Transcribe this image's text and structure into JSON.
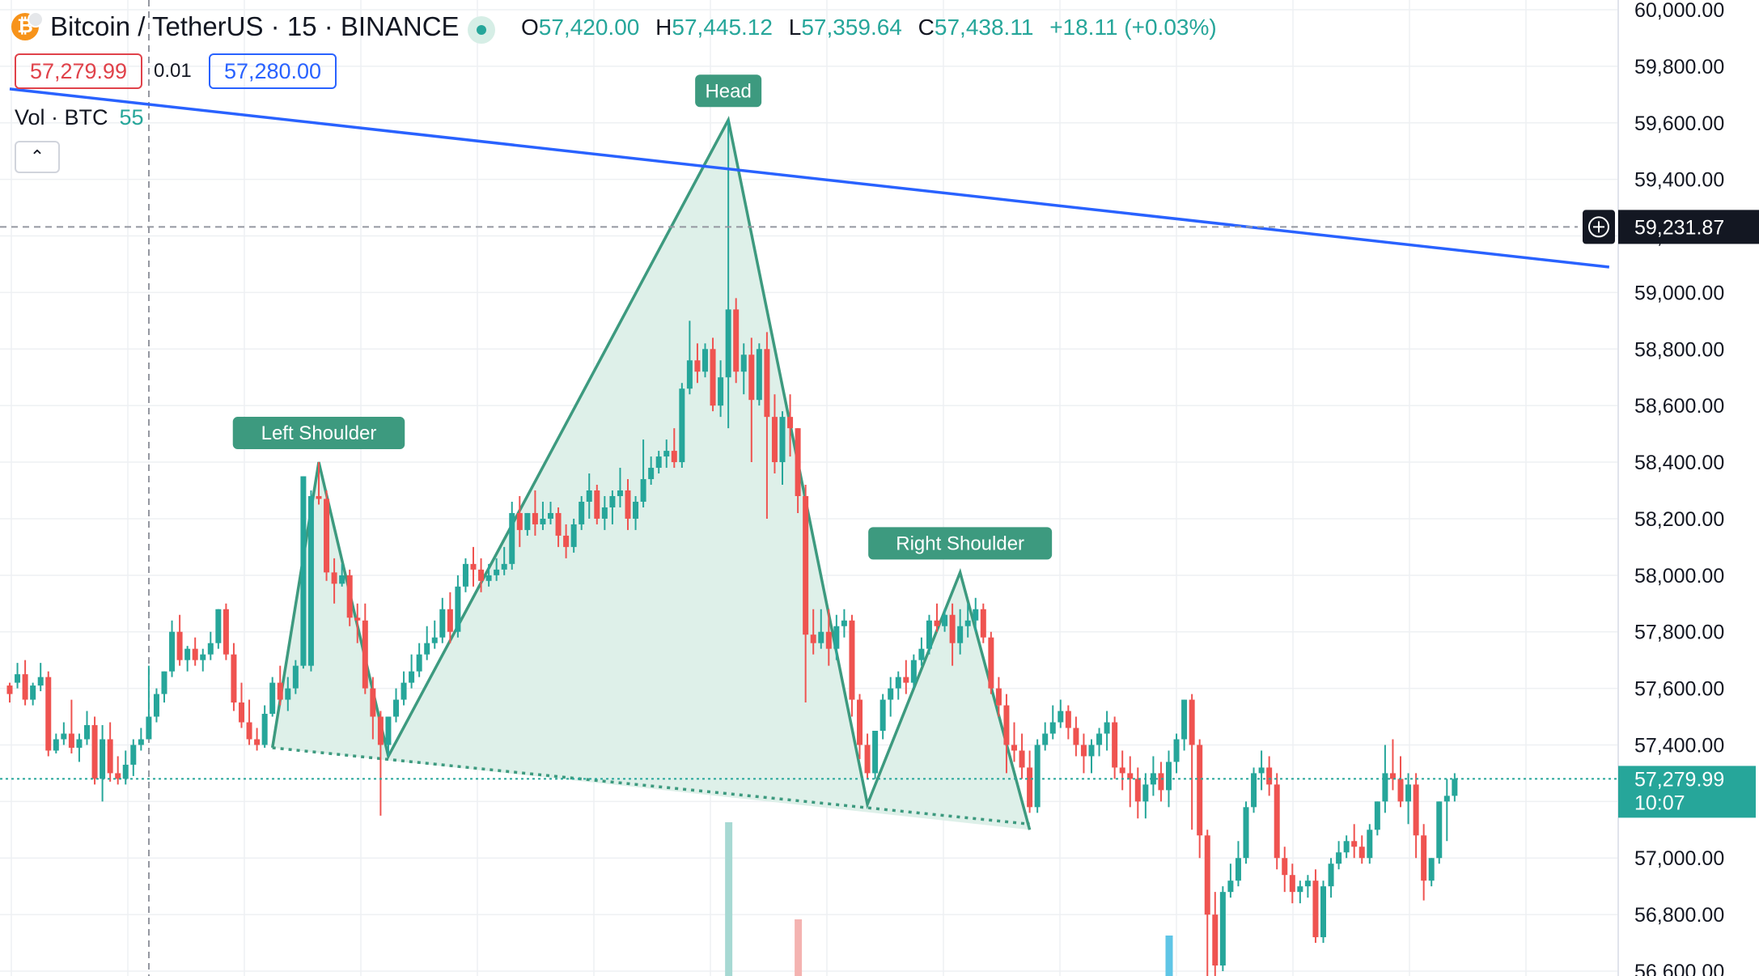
{
  "header": {
    "symbol_title": "Bitcoin / TetherUS · 15 · BINANCE",
    "coin_icon": "bitcoin-icon",
    "ohlc": {
      "o_label": "O",
      "o_value": "57,420.00",
      "h_label": "H",
      "h_value": "57,445.12",
      "l_label": "L",
      "l_value": "57,359.64",
      "c_label": "C",
      "c_value": "57,438.11",
      "change": "+18.11 (+0.03%)"
    },
    "sell_price": "57,279.99",
    "spread": "0.01",
    "buy_price": "57,280.00",
    "volume_label": "Vol · BTC",
    "volume_value": "55",
    "collapse_icon": "chevron-up-icon"
  },
  "chart_data": {
    "type": "candlestick",
    "ylim": [
      56600,
      60000
    ],
    "y_ticks": [
      "60,000.00",
      "59,800.00",
      "59,600.00",
      "59,400.00",
      "59,200.00",
      "59,000.00",
      "58,800.00",
      "58,600.00",
      "58,400.00",
      "58,200.00",
      "58,000.00",
      "57,800.00",
      "57,600.00",
      "57,400.00",
      "57,200.00",
      "57,000.00",
      "56,800.00",
      "56,600.00"
    ],
    "crosshair_price": "59,231.87",
    "last_price": "57,279.99",
    "countdown": "10:07",
    "pattern": {
      "labels": [
        "Left Shoulder",
        "Head",
        "Right Shoulder"
      ],
      "points": [
        {
          "bar": 34,
          "price": 57390
        },
        {
          "bar": 40,
          "price": 58400
        },
        {
          "bar": 49,
          "price": 57360
        },
        {
          "bar": 93,
          "price": 59610
        },
        {
          "bar": 111,
          "price": 57190
        },
        {
          "bar": 123,
          "price": 58010
        },
        {
          "bar": 132,
          "price": 57100
        }
      ],
      "neckline": [
        {
          "bar": 34,
          "price": 57390
        },
        {
          "bar": 132,
          "price": 57120
        }
      ]
    },
    "trendline": [
      {
        "bar": 0,
        "price": 59720
      },
      {
        "bar": 207,
        "price": 59090
      }
    ],
    "colors": {
      "up": "#26a69a",
      "down": "#ef5350",
      "trend": "#2962ff",
      "pattern": "#3d9a7f",
      "pattern_fill": "#dcefe8",
      "grid": "#eef0f3"
    },
    "candles": [
      [
        57610,
        57620,
        57580,
        57550
      ],
      [
        57620,
        57690,
        57650,
        57600
      ],
      [
        57650,
        57700,
        57560,
        57540
      ],
      [
        57560,
        57620,
        57610,
        57540
      ],
      [
        57610,
        57690,
        57640,
        57590
      ],
      [
        57640,
        57660,
        57380,
        57360
      ],
      [
        57380,
        57440,
        57420,
        57370
      ],
      [
        57420,
        57480,
        57440,
        57400
      ],
      [
        57440,
        57560,
        57390,
        57370
      ],
      [
        57390,
        57440,
        57420,
        57340
      ],
      [
        57420,
        57520,
        57470,
        57400
      ],
      [
        57470,
        57500,
        57280,
        57260
      ],
      [
        57280,
        57470,
        57420,
        57200
      ],
      [
        57420,
        57480,
        57300,
        57270
      ],
      [
        57300,
        57360,
        57280,
        57260
      ],
      [
        57280,
        57380,
        57330,
        57260
      ],
      [
        57330,
        57420,
        57400,
        57290
      ],
      [
        57400,
        57460,
        57420,
        57380
      ],
      [
        57420,
        57680,
        57500,
        57420
      ],
      [
        57500,
        57600,
        57580,
        57480
      ],
      [
        57580,
        57650,
        57660,
        57550
      ],
      [
        57660,
        57840,
        57800,
        57640
      ],
      [
        57800,
        57860,
        57700,
        57680
      ],
      [
        57700,
        57750,
        57740,
        57660
      ],
      [
        57740,
        57780,
        57700,
        57680
      ],
      [
        57700,
        57740,
        57720,
        57660
      ],
      [
        57720,
        57800,
        57760,
        57700
      ],
      [
        57760,
        57880,
        57880,
        57740
      ],
      [
        57880,
        57900,
        57720,
        57700
      ],
      [
        57720,
        57760,
        57550,
        57520
      ],
      [
        57550,
        57620,
        57480,
        57460
      ],
      [
        57480,
        57560,
        57420,
        57400
      ],
      [
        57420,
        57460,
        57400,
        57380
      ],
      [
        57400,
        57540,
        57510,
        57390
      ],
      [
        57510,
        57640,
        57620,
        57500
      ],
      [
        57620,
        57680,
        57560,
        57540
      ],
      [
        57560,
        57640,
        57600,
        57520
      ],
      [
        57600,
        57700,
        57680,
        57580
      ],
      [
        57680,
        58200,
        58350,
        57670
      ],
      [
        57680,
        58300,
        58280,
        57660
      ],
      [
        58280,
        58400,
        58270,
        58250
      ],
      [
        58270,
        58300,
        58010,
        57980
      ],
      [
        58010,
        58060,
        57970,
        57900
      ],
      [
        57970,
        58040,
        58000,
        57960
      ],
      [
        58000,
        58020,
        57850,
        57820
      ],
      [
        57850,
        57900,
        57840,
        57760
      ],
      [
        57840,
        57900,
        57600,
        57580
      ],
      [
        57600,
        57640,
        57500,
        57420
      ],
      [
        57500,
        57520,
        57400,
        57150
      ],
      [
        57400,
        57440,
        57500,
        57360
      ],
      [
        57500,
        57600,
        57560,
        57480
      ],
      [
        57560,
        57660,
        57620,
        57540
      ],
      [
        57620,
        57720,
        57660,
        57600
      ],
      [
        57660,
        57760,
        57720,
        57640
      ],
      [
        57720,
        57820,
        57760,
        57700
      ],
      [
        57760,
        57840,
        57780,
        57740
      ],
      [
        57780,
        57920,
        57880,
        57760
      ],
      [
        57880,
        57940,
        57800,
        57760
      ],
      [
        57800,
        58000,
        57960,
        57780
      ],
      [
        57960,
        58060,
        58040,
        57940
      ],
      [
        58040,
        58100,
        58020,
        57960
      ],
      [
        58020,
        58060,
        57980,
        57940
      ],
      [
        57980,
        58040,
        58000,
        57960
      ],
      [
        58000,
        58060,
        58020,
        57980
      ],
      [
        58020,
        58100,
        58040,
        58000
      ],
      [
        58040,
        58260,
        58220,
        58020
      ],
      [
        58220,
        58280,
        58160,
        58100
      ],
      [
        58160,
        58220,
        58220,
        58140
      ],
      [
        58220,
        58300,
        58180,
        58140
      ],
      [
        58180,
        58260,
        58200,
        58160
      ],
      [
        58200,
        58260,
        58220,
        58180
      ],
      [
        58220,
        58240,
        58140,
        58100
      ],
      [
        58140,
        58180,
        58100,
        58060
      ],
      [
        58100,
        58200,
        58180,
        58080
      ],
      [
        58180,
        58280,
        58260,
        58160
      ],
      [
        58260,
        58360,
        58300,
        58200
      ],
      [
        58300,
        58320,
        58200,
        58180
      ],
      [
        58200,
        58280,
        58240,
        58160
      ],
      [
        58240,
        58300,
        58280,
        58180
      ],
      [
        58280,
        58380,
        58300,
        58240
      ],
      [
        58300,
        58340,
        58200,
        58160
      ],
      [
        58200,
        58280,
        58260,
        58160
      ],
      [
        58260,
        58480,
        58340,
        58240
      ],
      [
        58340,
        58420,
        58380,
        58320
      ],
      [
        58380,
        58440,
        58420,
        58360
      ],
      [
        58420,
        58480,
        58440,
        58380
      ],
      [
        58440,
        58520,
        58400,
        58380
      ],
      [
        58400,
        58680,
        58660,
        58380
      ],
      [
        58660,
        58900,
        58760,
        58640
      ],
      [
        58760,
        58820,
        58720,
        58680
      ],
      [
        58720,
        58820,
        58800,
        58700
      ],
      [
        58800,
        58840,
        58600,
        58580
      ],
      [
        58600,
        58760,
        58700,
        58560
      ],
      [
        58700,
        59610,
        58940,
        58520
      ],
      [
        58940,
        58980,
        58720,
        58680
      ],
      [
        58720,
        58820,
        58780,
        58640
      ],
      [
        58780,
        58840,
        58620,
        58400
      ],
      [
        58620,
        58820,
        58800,
        58600
      ],
      [
        58800,
        58860,
        58560,
        58200
      ],
      [
        58560,
        58640,
        58400,
        58360
      ],
      [
        58400,
        58580,
        58560,
        58320
      ],
      [
        58560,
        58640,
        58520,
        58420
      ],
      [
        58520,
        58520,
        58280,
        58220
      ],
      [
        58280,
        58320,
        57790,
        57550
      ],
      [
        57790,
        57880,
        57760,
        57720
      ],
      [
        57760,
        57880,
        57800,
        57740
      ],
      [
        57800,
        57880,
        57740,
        57680
      ],
      [
        57740,
        57860,
        57820,
        57700
      ],
      [
        57820,
        57880,
        57840,
        57780
      ],
      [
        57840,
        57860,
        57560,
        57500
      ],
      [
        57560,
        57580,
        57400,
        57350
      ],
      [
        57400,
        57440,
        57300,
        57280
      ],
      [
        57300,
        57420,
        57450,
        57280
      ],
      [
        57450,
        57580,
        57560,
        57420
      ],
      [
        57560,
        57640,
        57600,
        57500
      ],
      [
        57600,
        57660,
        57640,
        57560
      ],
      [
        57640,
        57700,
        57620,
        57580
      ],
      [
        57620,
        57720,
        57700,
        57600
      ],
      [
        57700,
        57780,
        57740,
        57680
      ],
      [
        57740,
        57860,
        57840,
        57720
      ],
      [
        57840,
        57900,
        57820,
        57800
      ],
      [
        57820,
        57880,
        57860,
        57800
      ],
      [
        57860,
        57900,
        57760,
        57680
      ],
      [
        57760,
        57880,
        57820,
        57720
      ],
      [
        57820,
        57900,
        57840,
        57780
      ],
      [
        57840,
        57920,
        57880,
        57800
      ],
      [
        57880,
        57900,
        57780,
        57760
      ],
      [
        57780,
        57800,
        57600,
        57580
      ],
      [
        57600,
        57640,
        57540,
        57500
      ],
      [
        57540,
        57580,
        57400,
        57300
      ],
      [
        57400,
        57480,
        57380,
        57340
      ],
      [
        57380,
        57440,
        57320,
        57280
      ],
      [
        57320,
        57380,
        57180,
        57160
      ],
      [
        57180,
        57420,
        57400,
        57160
      ],
      [
        57400,
        57480,
        57440,
        57380
      ],
      [
        57440,
        57540,
        57480,
        57420
      ],
      [
        57480,
        57560,
        57520,
        57460
      ],
      [
        57520,
        57540,
        57460,
        57420
      ],
      [
        57460,
        57500,
        57400,
        57360
      ],
      [
        57400,
        57440,
        57360,
        57300
      ],
      [
        57360,
        57420,
        57400,
        57300
      ],
      [
        57400,
        57460,
        57440,
        57360
      ],
      [
        57440,
        57520,
        57480,
        57380
      ],
      [
        57480,
        57500,
        57320,
        57280
      ],
      [
        57320,
        57380,
        57300,
        57240
      ],
      [
        57300,
        57360,
        57280,
        57180
      ],
      [
        57280,
        57320,
        57200,
        57140
      ],
      [
        57200,
        57300,
        57260,
        57140
      ],
      [
        57260,
        57360,
        57300,
        57220
      ],
      [
        57300,
        57340,
        57240,
        57200
      ],
      [
        57240,
        57380,
        57340,
        57180
      ],
      [
        57340,
        57440,
        57420,
        57300
      ],
      [
        57420,
        57560,
        57560,
        57380
      ],
      [
        57560,
        57580,
        57400,
        57100
      ],
      [
        57400,
        57420,
        57080,
        57000
      ],
      [
        57080,
        57100,
        56800,
        56500
      ],
      [
        56800,
        56880,
        56620,
        56500
      ],
      [
        56620,
        56900,
        56880,
        56600
      ],
      [
        56880,
        56980,
        56920,
        56860
      ],
      [
        56920,
        57060,
        57000,
        56900
      ],
      [
        57000,
        57200,
        57180,
        56980
      ],
      [
        57180,
        57320,
        57300,
        57160
      ],
      [
        57300,
        57380,
        57320,
        57240
      ],
      [
        57320,
        57360,
        57260,
        57220
      ],
      [
        57260,
        57300,
        57000,
        56960
      ],
      [
        57000,
        57040,
        56940,
        56880
      ],
      [
        56940,
        56980,
        56880,
        56840
      ],
      [
        56880,
        56920,
        56900,
        56840
      ],
      [
        56900,
        56940,
        56920,
        56860
      ],
      [
        56920,
        56960,
        56720,
        56700
      ],
      [
        56720,
        56920,
        56900,
        56700
      ],
      [
        56900,
        57000,
        56980,
        56860
      ],
      [
        56980,
        57060,
        57020,
        56960
      ],
      [
        57020,
        57080,
        57060,
        57000
      ],
      [
        57060,
        57120,
        57040,
        57000
      ],
      [
        57040,
        57080,
        57000,
        56980
      ],
      [
        57000,
        57120,
        57100,
        56980
      ],
      [
        57100,
        57200,
        57200,
        57080
      ],
      [
        57200,
        57400,
        57300,
        57160
      ],
      [
        57300,
        57420,
        57280,
        57240
      ],
      [
        57280,
        57360,
        57200,
        57180
      ],
      [
        57200,
        57300,
        57260,
        57120
      ],
      [
        57260,
        57300,
        57080,
        57000
      ],
      [
        57080,
        57120,
        56920,
        56850
      ],
      [
        56920,
        57000,
        57000,
        56900
      ],
      [
        57000,
        57200,
        57200,
        56980
      ],
      [
        57200,
        57280,
        57220,
        57060
      ],
      [
        57220,
        57300,
        57280,
        57200
      ]
    ],
    "volume_bars": [
      {
        "bar": 93,
        "height": 190,
        "color": "#a7d9d3"
      },
      {
        "bar": 102,
        "height": 70,
        "color": "#f4b3b1"
      },
      {
        "bar": 150,
        "height": 50,
        "color": "#5fc5e6"
      }
    ]
  }
}
